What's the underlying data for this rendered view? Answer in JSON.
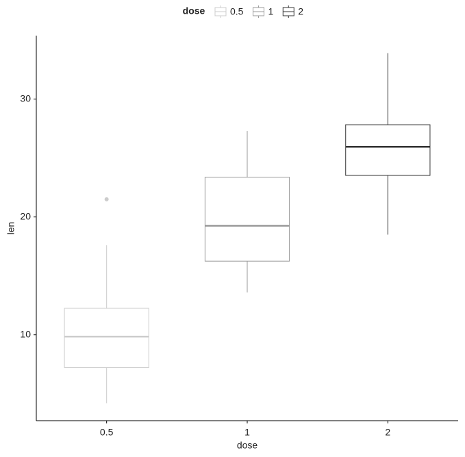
{
  "chart_data": {
    "type": "box",
    "x_label": "dose",
    "y_label": "len",
    "legend_title": "dose",
    "legend_position": "top",
    "categories": [
      "0.5",
      "1",
      "2"
    ],
    "series": [
      {
        "name": "0.5",
        "color": "#cccccc",
        "min": 4.2,
        "q1": 7.225,
        "median": 9.85,
        "q3": 12.25,
        "max": 17.6,
        "outliers": [
          21.5
        ]
      },
      {
        "name": "1",
        "color": "#999999",
        "min": 13.6,
        "q1": 16.25,
        "median": 19.25,
        "q3": 23.375,
        "max": 27.3,
        "outliers": []
      },
      {
        "name": "2",
        "color": "#333333",
        "min": 18.5,
        "q1": 23.525,
        "median": 25.95,
        "q3": 27.825,
        "max": 33.9,
        "outliers": []
      }
    ],
    "ylim": [
      2.715,
      35.385
    ],
    "yticks": [
      10,
      20,
      30
    ],
    "grid": false
  }
}
